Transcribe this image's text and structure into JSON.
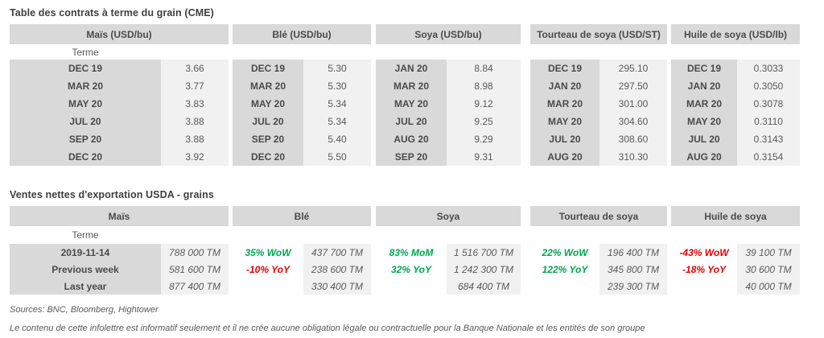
{
  "colors": {
    "positive_green": "#00a651",
    "negative_red": "#e00000",
    "header_gray": "#d9d9d9",
    "cell_gray": "#f1f1f1"
  },
  "futures": {
    "title": "Table des contrats à terme du grain (CME)",
    "terme": "Terme",
    "groups": [
      {
        "header": "Maïs (USD/bu)",
        "rows": [
          [
            "DEC 19",
            "3.66"
          ],
          [
            "MAR 20",
            "3.77"
          ],
          [
            "MAY 20",
            "3.83"
          ],
          [
            "JUL 20",
            "3.88"
          ],
          [
            "SEP 20",
            "3.88"
          ],
          [
            "DEC 20",
            "3.92"
          ]
        ]
      },
      {
        "header": "Blé (USD/bu)",
        "rows": [
          [
            "DEC 19",
            "5.30"
          ],
          [
            "MAR 20",
            "5.30"
          ],
          [
            "MAY 20",
            "5.34"
          ],
          [
            "JUL 20",
            "5.34"
          ],
          [
            "SEP 20",
            "5.40"
          ],
          [
            "DEC 20",
            "5.50"
          ]
        ]
      },
      {
        "header": "Soya (USD/bu)",
        "rows": [
          [
            "JAN 20",
            "8.84"
          ],
          [
            "MAR 20",
            "8.98"
          ],
          [
            "MAY 20",
            "9.12"
          ],
          [
            "JUL 20",
            "9.25"
          ],
          [
            "AUG 20",
            "9.29"
          ],
          [
            "SEP 20",
            "9.31"
          ]
        ]
      },
      {
        "header": "Tourteau de soya (USD/ST)",
        "rows": [
          [
            "DEC 19",
            "295.10"
          ],
          [
            "JAN 20",
            "297.50"
          ],
          [
            "MAR 20",
            "301.00"
          ],
          [
            "MAY 20",
            "304.60"
          ],
          [
            "JUL 20",
            "308.60"
          ],
          [
            "AUG 20",
            "310.30"
          ]
        ]
      },
      {
        "header": "Huile de soya (USD/lb)",
        "rows": [
          [
            "DEC 19",
            "0.3033"
          ],
          [
            "JAN 20",
            "0.3050"
          ],
          [
            "MAR 20",
            "0.3078"
          ],
          [
            "MAY 20",
            "0.3110"
          ],
          [
            "JUL 20",
            "0.3143"
          ],
          [
            "AUG 20",
            "0.3154"
          ]
        ]
      }
    ]
  },
  "exports": {
    "title": "Ventes nettes d'exportation USDA - grains",
    "terme": "Terme",
    "row_labels": [
      "2019-11-14",
      "Previous week",
      "Last year"
    ],
    "groups": [
      {
        "header": "Maïs",
        "values": [
          "788 000 TM",
          "581 600 TM",
          "877 400 TM"
        ]
      },
      {
        "header": "Blé",
        "pct": [
          "35% WoW",
          "-10% YoY",
          ""
        ],
        "pct_colors": [
          "green",
          "red",
          ""
        ],
        "values": [
          "437 700 TM",
          "238 600 TM",
          "330 400 TM"
        ]
      },
      {
        "header": "Soya",
        "pct": [
          "83% MoM",
          "32% YoY",
          ""
        ],
        "pct_colors": [
          "green",
          "green",
          ""
        ],
        "values": [
          "1 516 700 TM",
          "1 242 300 TM",
          "684 400 TM"
        ]
      },
      {
        "header": "Tourteau de soya",
        "pct": [
          "22% WoW",
          "122% YoY",
          ""
        ],
        "pct_colors": [
          "green",
          "green",
          ""
        ],
        "values": [
          "196 400 TM",
          "345 800 TM",
          "239 300 TM"
        ]
      },
      {
        "header": "Huile de soya",
        "pct": [
          "-43% WoW",
          "-18% YoY",
          ""
        ],
        "pct_colors": [
          "red",
          "red",
          ""
        ],
        "values": [
          "39 100 TM",
          "30 600 TM",
          "40 000 TM"
        ]
      }
    ]
  },
  "footer": {
    "sources": "Sources: BNC, Bloomberg, Hightower",
    "disclaimer": "Le contenu de cette infolettre est informatif seulement et il ne crée aucune obligation légale ou contractuelle pour la Banque Nationale et les entités de son groupe"
  }
}
